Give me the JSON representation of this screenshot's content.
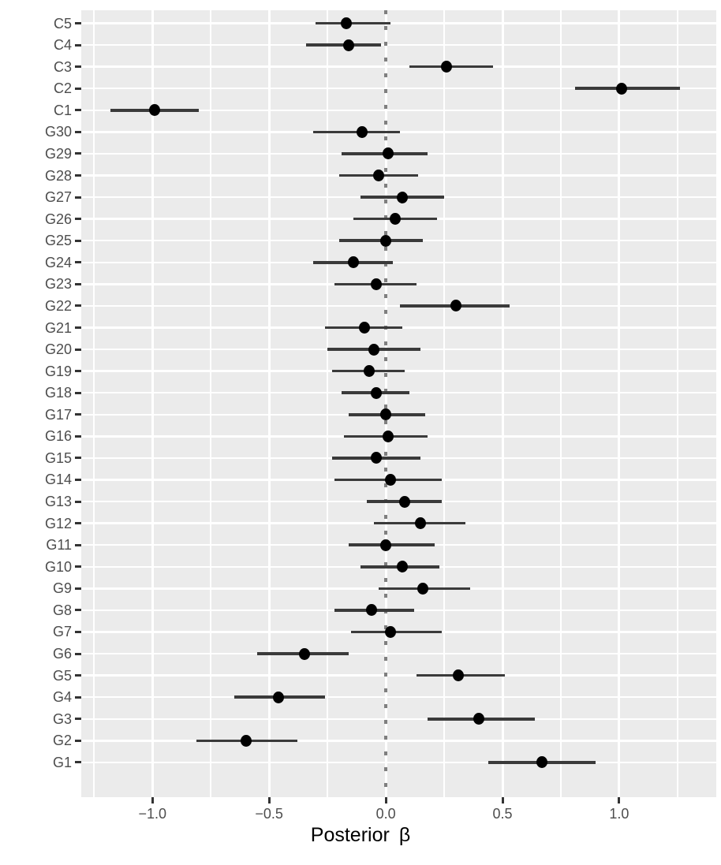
{
  "chart_data": {
    "type": "scatter",
    "subtype": "forest-plot-dot-and-interval",
    "orientation": "horizontal",
    "title": "",
    "xlabel": "Posterior β",
    "xlabel_word": "Posterior",
    "xlabel_symbol": "β",
    "ylabel": "",
    "x_range": [
      -1.305,
      1.416
    ],
    "x_ticks": {
      "values": [
        -1.0,
        -0.5,
        0.0,
        0.5,
        1.0
      ],
      "labels": [
        "−1.0",
        "−0.5",
        "0.0",
        "0.5",
        "1.0"
      ]
    },
    "x_minor_gridlines": [
      -1.25,
      -0.75,
      -0.25,
      0.25,
      0.75,
      1.25
    ],
    "x_major_gridlines": [
      -1.0,
      -0.5,
      0.0,
      0.5,
      1.0
    ],
    "reference_line": {
      "x": 0.0,
      "linetype": "dotted",
      "color": "#7F7F7F"
    },
    "grid": true,
    "legend": "none",
    "categories_top_to_bottom": [
      "C5",
      "C4",
      "C3",
      "C2",
      "C1",
      "G30",
      "G29",
      "G28",
      "G27",
      "G26",
      "G25",
      "G24",
      "G23",
      "G22",
      "G21",
      "G20",
      "G19",
      "G18",
      "G17",
      "G16",
      "G15",
      "G14",
      "G13",
      "G12",
      "G11",
      "G10",
      "G9",
      "G8",
      "G7",
      "G6",
      "G5",
      "G4",
      "G3",
      "G2",
      "G1"
    ],
    "values": [
      -0.17,
      -0.16,
      0.26,
      1.01,
      -0.99,
      -0.1,
      0.01,
      -0.03,
      0.07,
      0.04,
      0.0,
      -0.14,
      -0.04,
      0.3,
      -0.09,
      -0.05,
      -0.07,
      -0.04,
      0.0,
      0.01,
      -0.04,
      0.02,
      0.08,
      0.15,
      0.0,
      0.07,
      0.16,
      -0.06,
      0.02,
      -0.35,
      0.31,
      -0.46,
      0.4,
      -0.6,
      0.67
    ],
    "interval_lower": [
      -0.3,
      -0.34,
      0.1,
      0.81,
      -1.18,
      -0.31,
      -0.19,
      -0.2,
      -0.11,
      -0.14,
      -0.2,
      -0.31,
      -0.22,
      0.06,
      -0.26,
      -0.25,
      -0.23,
      -0.19,
      -0.16,
      -0.18,
      -0.23,
      -0.22,
      -0.08,
      -0.05,
      -0.16,
      -0.11,
      -0.03,
      -0.22,
      -0.15,
      -0.55,
      0.13,
      -0.65,
      0.18,
      -0.81,
      0.44
    ],
    "interval_upper": [
      0.02,
      -0.02,
      0.46,
      1.26,
      -0.8,
      0.06,
      0.18,
      0.14,
      0.25,
      0.22,
      0.16,
      0.03,
      0.13,
      0.53,
      0.07,
      0.15,
      0.08,
      0.1,
      0.17,
      0.18,
      0.15,
      0.24,
      0.24,
      0.34,
      0.21,
      0.23,
      0.36,
      0.12,
      0.24,
      -0.16,
      0.51,
      -0.26,
      0.64,
      -0.38,
      0.9
    ]
  },
  "colors": {
    "panel_background": "#EBEBEB",
    "gridline": "#FFFFFF",
    "point": "#000000",
    "interval_bar": "#3A3A3A",
    "reference_line": "#7F7F7F",
    "axis_text": "#4D4D4D",
    "axis_title": "#000000",
    "tick_mark": "#333333",
    "page_background": "#FFFFFF"
  }
}
